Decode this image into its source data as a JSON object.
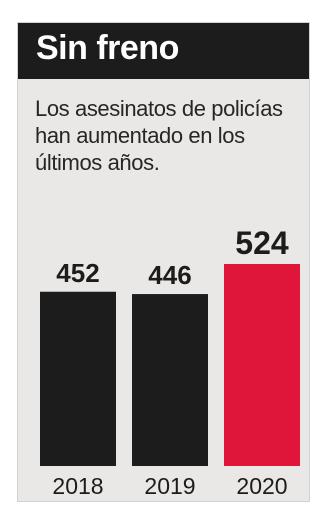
{
  "header": {
    "title": "Sin freno",
    "subtitle": "Los asesinatos de policías han aumentado en los últimos años."
  },
  "colors": {
    "background": "#eae8e6",
    "title_band": "#1c1c1c",
    "bar_default": "#1c1c1c",
    "bar_highlight": "#e0153a"
  },
  "chart_data": {
    "type": "bar",
    "title": "Sin freno",
    "subtitle": "Los asesinatos de policías han aumentado en los últimos años.",
    "categories": [
      "2018",
      "2019",
      "2020"
    ],
    "values": [
      452,
      446,
      524
    ],
    "highlight_category": "2020",
    "xlabel": "",
    "ylabel": "",
    "grid": false,
    "legend": "none"
  }
}
